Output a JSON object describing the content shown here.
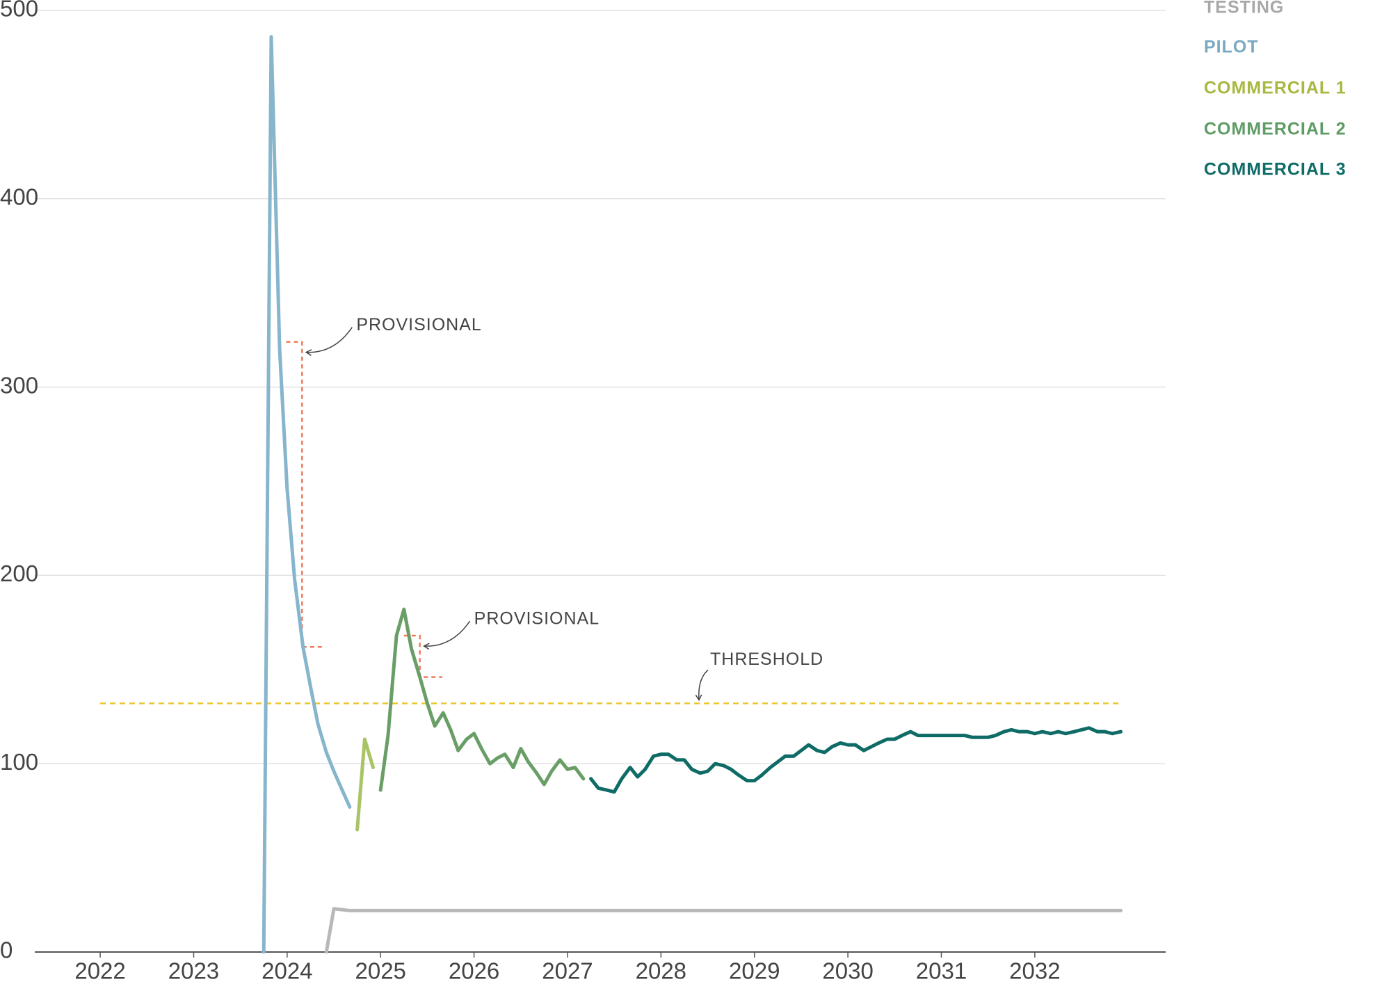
{
  "chart_data": {
    "type": "line",
    "xlim": [
      2021.3,
      2033.4
    ],
    "xticks": [
      2022,
      2023,
      2024,
      2025,
      2026,
      2027,
      2028,
      2029,
      2030,
      2031,
      2032
    ],
    "ylim": [
      0,
      500
    ],
    "yticks": [
      0,
      100,
      200,
      300,
      400,
      500
    ],
    "grid": true,
    "series": [
      {
        "name": "TESTING",
        "color": "#b8b8b8",
        "legend_color": "#a8a8a8",
        "x": [
          2024.42,
          2024.5,
          2024.67,
          2028,
          2032.92
        ],
        "values": [
          0,
          23,
          22,
          22,
          22
        ]
      },
      {
        "name": "PILOT",
        "color": "#86b5cc",
        "legend_color": "#79a9c2",
        "x": [
          2023.75,
          2023.83,
          2023.92,
          2024,
          2024.08,
          2024.17,
          2024.25,
          2024.33,
          2024.42,
          2024.5,
          2024.58,
          2024.67
        ],
        "values": [
          0,
          486,
          320,
          246,
          198,
          162,
          141,
          121,
          106,
          96,
          87,
          77
        ]
      },
      {
        "name": "COMMERCIAL 1",
        "color": "#a9c466",
        "legend_color": "#a9b840",
        "x": [
          2024.75,
          2024.83,
          2024.92
        ],
        "values": [
          65,
          113,
          98
        ]
      },
      {
        "name": "COMMERCIAL 2",
        "color": "#6a9e67",
        "legend_color": "#5f9b64",
        "x": [
          2025,
          2025.08,
          2025.17,
          2025.25,
          2025.33,
          2025.42,
          2025.5,
          2025.58,
          2025.67,
          2025.75,
          2025.83,
          2025.92,
          2026,
          2026.08,
          2026.17,
          2026.25,
          2026.33,
          2026.42,
          2026.5,
          2026.58,
          2026.67,
          2026.75,
          2026.83,
          2026.92,
          2027,
          2027.08,
          2027.17
        ],
        "values": [
          86,
          115,
          168,
          182,
          161,
          146,
          132,
          120,
          127,
          118,
          107,
          113,
          116,
          108,
          100,
          103,
          105,
          98,
          108,
          101,
          95,
          89,
          96,
          102,
          97,
          98,
          92
        ]
      },
      {
        "name": "COMMERCIAL 3",
        "color": "#0f6b66",
        "legend_color": "#0e6b66",
        "x": [
          2027.25,
          2027.33,
          2027.42,
          2027.5,
          2027.58,
          2027.67,
          2027.75,
          2027.83,
          2027.92,
          2028,
          2028.08,
          2028.17,
          2028.25,
          2028.33,
          2028.42,
          2028.5,
          2028.58,
          2028.67,
          2028.75,
          2028.83,
          2028.92,
          2029,
          2029.08,
          2029.17,
          2029.25,
          2029.33,
          2029.42,
          2029.5,
          2029.58,
          2029.67,
          2029.75,
          2029.83,
          2029.92,
          2030,
          2030.08,
          2030.17,
          2030.25,
          2030.33,
          2030.42,
          2030.5,
          2030.58,
          2030.67,
          2030.75,
          2030.83,
          2030.92,
          2031,
          2031.08,
          2031.17,
          2031.25,
          2031.33,
          2031.42,
          2031.5,
          2031.58,
          2031.67,
          2031.75,
          2031.83,
          2031.92,
          2032,
          2032.08,
          2032.17,
          2032.25,
          2032.33,
          2032.42,
          2032.5,
          2032.58,
          2032.67,
          2032.75,
          2032.83,
          2032.92
        ],
        "values": [
          92,
          87,
          86,
          85,
          92,
          98,
          93,
          97,
          104,
          105,
          105,
          102,
          102,
          97,
          95,
          96,
          100,
          99,
          97,
          94,
          91,
          91,
          94,
          98,
          101,
          104,
          104,
          107,
          110,
          107,
          106,
          109,
          111,
          110,
          110,
          107,
          109,
          111,
          113,
          113,
          115,
          117,
          115,
          115,
          115,
          115,
          115,
          115,
          115,
          114,
          114,
          114,
          115,
          117,
          118,
          117,
          117,
          116,
          117,
          116,
          117,
          116,
          117,
          118,
          119,
          117,
          117,
          116,
          117
        ]
      }
    ],
    "threshold": {
      "label": "THRESHOLD",
      "value": 132,
      "x": [
        2022,
        2032.92
      ],
      "color": "#e8c62a"
    },
    "annotations": [
      {
        "label": "PROVISIONAL",
        "color": "#f07a5a",
        "x": [
          2023.99,
          2024.16,
          2024.16,
          2024.41
        ],
        "values": [
          324,
          324,
          162,
          162
        ]
      },
      {
        "label": "PROVISIONAL",
        "color": "#f07a5a",
        "x": [
          2025.25,
          2025.42,
          2025.42,
          2025.66
        ],
        "values": [
          168,
          168,
          146,
          146
        ]
      }
    ]
  }
}
